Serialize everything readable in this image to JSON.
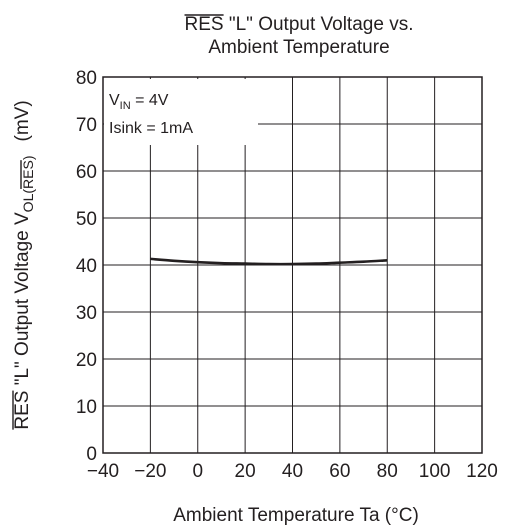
{
  "chart_data": {
    "type": "line",
    "title_over": "RES",
    "title_line1_rest": " \"L\" Output Voltage vs.",
    "title_line2": "Ambient Temperature",
    "xlabel": "Ambient Temperature   Ta   (°C)",
    "ylabel_over": "RES",
    "ylabel_rest": " \"L\" Output Voltage   V",
    "ylabel_sub_pre": "OL(",
    "ylabel_sub_over": "RES",
    "ylabel_sub_post": ")",
    "ylabel_unit": "(mV)",
    "xlim": [
      -40,
      120
    ],
    "ylim": [
      0,
      80
    ],
    "x_ticks": [
      -40,
      -20,
      0,
      20,
      40,
      60,
      80,
      100,
      120
    ],
    "x_tick_labels": [
      "−40",
      "−20",
      "0",
      "20",
      "40",
      "60",
      "80",
      "100",
      "120"
    ],
    "y_ticks": [
      0,
      10,
      20,
      30,
      40,
      50,
      60,
      70,
      80
    ],
    "y_tick_labels": [
      "0",
      "10",
      "20",
      "30",
      "40",
      "50",
      "60",
      "70",
      "80"
    ],
    "grid": true,
    "conditions": {
      "vin_main": "V",
      "vin_sub": "IN",
      "vin_rest": " = 4V",
      "isink": "Isink = 1mA"
    },
    "series": [
      {
        "x": [
          -20,
          -10,
          0,
          10,
          20,
          30,
          40,
          50,
          60,
          70,
          80
        ],
        "y": [
          41.3,
          40.9,
          40.6,
          40.4,
          40.3,
          40.2,
          40.2,
          40.3,
          40.5,
          40.7,
          41.0
        ]
      }
    ]
  }
}
